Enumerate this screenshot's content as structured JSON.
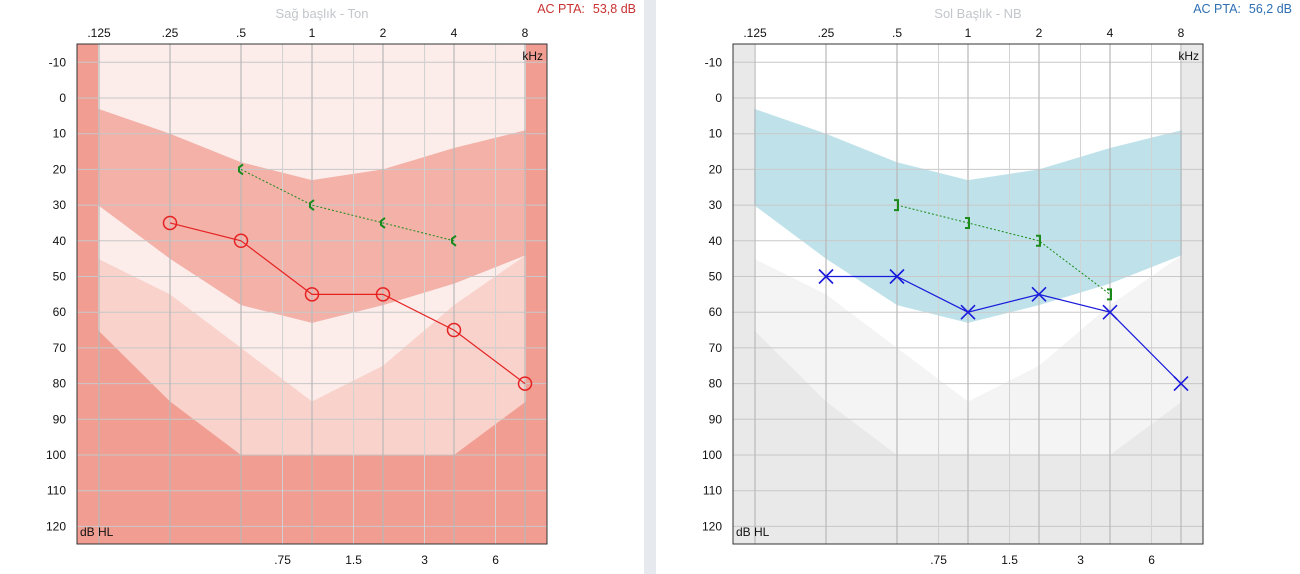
{
  "panels": {
    "right": {
      "title": "Sağ başlık - Ton",
      "pta": {
        "label": "AC PTA:",
        "value": "53,8 dB",
        "color": "#c83232"
      }
    },
    "left": {
      "title": "Sol Başlık - NB",
      "pta": {
        "label": "AC PTA:",
        "value": "56,2 dB",
        "color": "#2e6fb4"
      }
    }
  },
  "chart_data": [
    {
      "type": "line",
      "title": "Sağ başlık - Ton",
      "xlabel": "kHz",
      "ylabel": "dB HL",
      "x_ticks_top": [
        ".125",
        ".25",
        ".5",
        "1",
        "2",
        "4",
        "8"
      ],
      "x_ticks_bottom": [
        ".75",
        "1.5",
        "3",
        "6"
      ],
      "y_ticks": [
        -10,
        0,
        10,
        20,
        30,
        40,
        50,
        60,
        70,
        80,
        90,
        100,
        110,
        120
      ],
      "ylim": [
        -15,
        125
      ],
      "colors": {
        "bg": "#f19d92",
        "mid": "#f8d2cb",
        "light": "#fcecea",
        "band": "#f3b1a8",
        "air": "#e52222",
        "bone": "#1a8a1a"
      },
      "series": [
        {
          "name": "Air conduction",
          "marker": "circle",
          "x": [
            0.25,
            0.5,
            1,
            2,
            4,
            8
          ],
          "values": [
            35,
            40,
            55,
            55,
            65,
            80
          ]
        },
        {
          "name": "Bone conduction (masked)",
          "marker": "bracket-left",
          "x": [
            0.5,
            1,
            2,
            4
          ],
          "values": [
            20,
            30,
            35,
            40
          ]
        }
      ]
    },
    {
      "type": "line",
      "title": "Sol Başlık - NB",
      "xlabel": "kHz",
      "ylabel": "dB HL",
      "x_ticks_top": [
        ".125",
        ".25",
        ".5",
        "1",
        "2",
        "4",
        "8"
      ],
      "x_ticks_bottom": [
        ".75",
        "1.5",
        "3",
        "6"
      ],
      "y_ticks": [
        -10,
        0,
        10,
        20,
        30,
        40,
        50,
        60,
        70,
        80,
        90,
        100,
        110,
        120
      ],
      "ylim": [
        -15,
        125
      ],
      "colors": {
        "bg": "#e9e9e9",
        "mid": "#f4f4f4",
        "light": "#ffffff",
        "band": "#bfe2ea",
        "air": "#1a1adb",
        "bone": "#1a8a1a"
      },
      "series": [
        {
          "name": "Air conduction",
          "marker": "cross",
          "x": [
            0.25,
            0.5,
            1,
            2,
            4,
            8
          ],
          "values": [
            50,
            50,
            60,
            55,
            60,
            80
          ]
        },
        {
          "name": "Bone conduction (masked)",
          "marker": "bracket-right",
          "x": [
            0.5,
            1,
            2,
            4
          ],
          "values": [
            30,
            35,
            40,
            55
          ]
        }
      ]
    }
  ]
}
